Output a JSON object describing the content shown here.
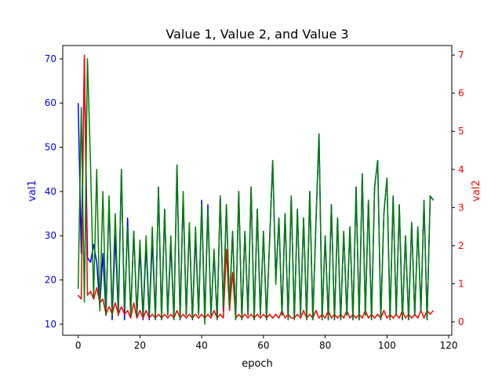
{
  "chart_data": {
    "type": "line",
    "title": "Value 1, Value 2, and Value 3",
    "xlabel": "epoch",
    "ylabel_left": "val1",
    "ylabel_right": "val2",
    "xlim": [
      -5,
      121
    ],
    "ylim_left": [
      7.5,
      73
    ],
    "ylim_right": [
      -0.35,
      7.25
    ],
    "x_ticks": [
      0,
      20,
      40,
      60,
      80,
      100,
      120
    ],
    "y_ticks_left": [
      10,
      20,
      30,
      40,
      50,
      60,
      70
    ],
    "y_ticks_right": [
      0,
      1,
      2,
      3,
      4,
      5,
      6,
      7
    ],
    "grid": false,
    "colors": {
      "val1": "#0000ff",
      "val2": "#ff0000",
      "val3": "#008000",
      "axes": "#000000",
      "left_tick_labels": "#0000ff",
      "right_tick_labels": "#ff0000"
    },
    "series": [
      {
        "axis": "left",
        "color": "#0000ff",
        "x": [
          0,
          1,
          2,
          3,
          4,
          5,
          6,
          7,
          8,
          9,
          10,
          11,
          12,
          13,
          14,
          15,
          16,
          17,
          18,
          19,
          20,
          21,
          22,
          23,
          24,
          25,
          26,
          27,
          28,
          29,
          30,
          31,
          32,
          33,
          34,
          35,
          36,
          37,
          38,
          39,
          40,
          41,
          42,
          43,
          44,
          45,
          46,
          47,
          48,
          49,
          50,
          51,
          52,
          53,
          54,
          55,
          56,
          57,
          58,
          59,
          60,
          61,
          62,
          63,
          64,
          65,
          66,
          67,
          68,
          69,
          70,
          71,
          72,
          73,
          74,
          75,
          76,
          77,
          78,
          79,
          80,
          81,
          82,
          83,
          84,
          85,
          86,
          87,
          88,
          89,
          90,
          91,
          92,
          93,
          94,
          95,
          96,
          97,
          98,
          99,
          100,
          101,
          102,
          103,
          104,
          105,
          106,
          107,
          108,
          109,
          110,
          111,
          112,
          113,
          114,
          115
        ],
        "values": [
          60,
          26,
          70,
          25,
          24,
          28,
          24,
          14,
          26,
          12,
          38,
          11,
          30,
          12,
          45,
          11,
          34,
          12,
          31,
          12,
          27,
          11,
          28,
          11,
          29,
          11,
          41,
          11,
          36,
          12,
          28,
          11,
          46,
          11,
          39,
          12,
          32,
          11,
          30,
          12,
          38,
          11,
          37,
          12,
          26,
          11,
          39,
          13,
          37,
          14,
          31,
          11,
          40,
          11,
          31,
          12,
          41,
          11,
          36,
          12,
          31,
          11,
          29,
          47,
          20,
          34,
          12,
          35,
          11,
          39,
          11,
          36,
          12,
          34,
          11,
          40,
          11,
          33,
          53,
          11,
          30,
          11,
          37,
          11,
          34,
          11,
          31,
          12,
          32,
          11,
          41,
          11,
          44,
          12,
          38,
          11,
          41,
          47,
          11,
          35,
          43,
          11,
          39,
          12,
          37,
          11,
          30,
          11,
          33,
          12,
          32,
          13,
          38,
          11,
          39,
          38
        ]
      },
      {
        "axis": "right",
        "color": "#ff0000",
        "x": [
          0,
          1,
          2,
          3,
          4,
          5,
          6,
          7,
          8,
          9,
          10,
          11,
          12,
          13,
          14,
          15,
          16,
          17,
          18,
          19,
          20,
          21,
          22,
          23,
          24,
          25,
          26,
          27,
          28,
          29,
          30,
          31,
          32,
          33,
          34,
          35,
          36,
          37,
          38,
          39,
          40,
          41,
          42,
          43,
          44,
          45,
          46,
          47,
          48,
          49,
          50,
          51,
          52,
          53,
          54,
          55,
          56,
          57,
          58,
          59,
          60,
          61,
          62,
          63,
          64,
          65,
          66,
          67,
          68,
          69,
          70,
          71,
          72,
          73,
          74,
          75,
          76,
          77,
          78,
          79,
          80,
          81,
          82,
          83,
          84,
          85,
          86,
          87,
          88,
          89,
          90,
          91,
          92,
          93,
          94,
          95,
          96,
          97,
          98,
          99,
          100,
          101,
          102,
          103,
          104,
          105,
          106,
          107,
          108,
          109,
          110,
          111,
          112,
          113,
          114,
          115
        ],
        "values": [
          0.7,
          0.6,
          7.0,
          0.7,
          0.8,
          0.6,
          0.9,
          0.5,
          0.6,
          0.2,
          0.4,
          0.2,
          0.5,
          0.2,
          0.4,
          0.2,
          0.3,
          0.1,
          0.5,
          0.1,
          0.3,
          0.1,
          0.3,
          0.1,
          0.2,
          0.1,
          0.2,
          0.1,
          0.2,
          0.1,
          0.2,
          0.1,
          0.3,
          0.1,
          0.2,
          0.1,
          0.2,
          0.1,
          0.2,
          0.1,
          0.2,
          0.1,
          0.2,
          0.1,
          0.3,
          0.1,
          0.2,
          0.1,
          1.9,
          0.3,
          1.3,
          0.1,
          0.2,
          0.1,
          0.2,
          0.1,
          0.2,
          0.1,
          0.2,
          0.1,
          0.2,
          0.1,
          0.2,
          0.1,
          0.2,
          0.1,
          0.3,
          0.1,
          0.2,
          0.1,
          0.1,
          0.2,
          0.1,
          0.3,
          0.1,
          0.2,
          0.1,
          0.3,
          0.1,
          0.2,
          0.1,
          0.3,
          0.1,
          0.2,
          0.1,
          0.2,
          0.1,
          0.3,
          0.1,
          0.2,
          0.1,
          0.2,
          0.1,
          0.3,
          0.1,
          0.2,
          0.1,
          0.2,
          0.1,
          0.3,
          0.1,
          0.2,
          0.1,
          0.2,
          0.1,
          0.3,
          0.1,
          0.2,
          0.1,
          0.2,
          0.1,
          0.3,
          0.1,
          0.3,
          0.2,
          0.3
        ]
      },
      {
        "axis": "left",
        "color": "#008000",
        "x": [
          0,
          1,
          2,
          3,
          4,
          5,
          6,
          7,
          8,
          9,
          10,
          11,
          12,
          13,
          14,
          15,
          16,
          17,
          18,
          19,
          20,
          21,
          22,
          23,
          24,
          25,
          26,
          27,
          28,
          29,
          30,
          31,
          32,
          33,
          34,
          35,
          36,
          37,
          38,
          39,
          40,
          41,
          42,
          43,
          44,
          45,
          46,
          47,
          48,
          49,
          50,
          51,
          52,
          53,
          54,
          55,
          56,
          57,
          58,
          59,
          60,
          61,
          62,
          63,
          64,
          65,
          66,
          67,
          68,
          69,
          70,
          71,
          72,
          73,
          74,
          75,
          76,
          77,
          78,
          79,
          80,
          81,
          82,
          83,
          84,
          85,
          86,
          87,
          88,
          89,
          90,
          91,
          92,
          93,
          94,
          95,
          96,
          97,
          98,
          99,
          100,
          101,
          102,
          103,
          104,
          105,
          106,
          107,
          108,
          109,
          110,
          111,
          112,
          113,
          114,
          115
        ],
        "values": [
          18,
          59,
          15,
          70,
          46,
          16,
          45,
          13,
          40,
          12,
          39,
          12,
          35,
          13,
          45,
          13,
          32,
          12,
          31,
          12,
          29,
          12,
          30,
          12,
          32,
          11,
          41,
          11,
          36,
          12,
          30,
          11,
          46,
          11,
          40,
          12,
          33,
          11,
          32,
          12,
          37,
          10,
          36,
          12,
          27,
          11,
          39,
          14,
          37,
          14,
          31,
          11,
          40,
          11,
          31,
          12,
          41,
          11,
          36,
          12,
          31,
          11,
          29,
          47,
          19,
          34,
          12,
          35,
          11,
          39,
          11,
          36,
          12,
          34,
          11,
          40,
          11,
          33,
          53,
          11,
          30,
          11,
          37,
          11,
          34,
          11,
          31,
          12,
          32,
          11,
          41,
          11,
          44,
          12,
          38,
          11,
          41,
          47,
          11,
          35,
          43,
          11,
          39,
          12,
          37,
          11,
          30,
          11,
          33,
          12,
          32,
          13,
          38,
          11,
          39,
          38
        ]
      }
    ]
  }
}
